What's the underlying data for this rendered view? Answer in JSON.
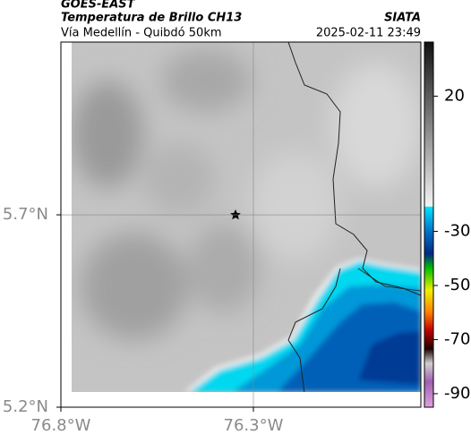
{
  "header": {
    "satellite": "GOES-EAST",
    "product": "Temperatura de Brillo CH13",
    "agency": "SIATA",
    "location": "Vía Medellín - Quibdó 50km",
    "timestamp": "2025-02-11 23:49"
  },
  "map": {
    "xlim": [
      -76.8,
      -75.865
    ],
    "ylim": [
      5.2,
      6.149
    ],
    "xticks": [
      {
        "value": -76.8,
        "label": "76.8°W"
      },
      {
        "value": -76.3,
        "label": "76.3°W"
      }
    ],
    "yticks": [
      {
        "value": 5.2,
        "label": "5.2°N"
      },
      {
        "value": 5.7,
        "label": "5.7°N"
      }
    ],
    "grid": true
  },
  "colorbar": {
    "clim": [
      40,
      -95
    ],
    "ticks": [
      20,
      -30,
      -50,
      -70,
      -90
    ]
  }
}
